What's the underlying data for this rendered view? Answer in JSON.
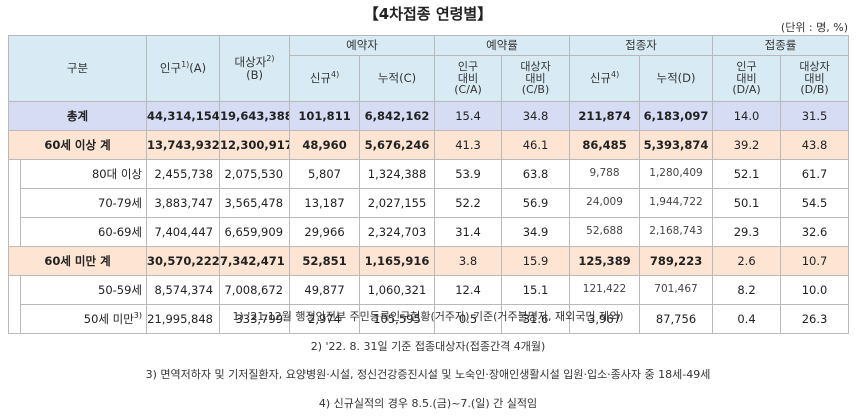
{
  "title": "【4차접종 연령별】",
  "unit": "(단위 : 명, %)",
  "header": {
    "category": "구분",
    "population": "인구",
    "population_sup": "1)",
    "population_code": "(A)",
    "target": "대상자",
    "target_sup": "2)",
    "target_code": "(B)",
    "reservation_group": "예약자",
    "reservation_rate_group": "예약률",
    "vaccinated_group": "접종자",
    "vaccination_rate_group": "접종률",
    "new": "신규",
    "new_sup": "4)",
    "cumulative_c": "누적(C)",
    "cumulative_d": "누적(D)",
    "pop_ratio_line1": "인구",
    "pop_ratio_line2": "대비",
    "target_ratio_line1": "대상자",
    "target_ratio_line2": "대비",
    "ca": "(C/A)",
    "cb": "(C/B)",
    "da": "(D/A)",
    "db": "(D/B)"
  },
  "rows": [
    {
      "label": "총계",
      "population": "44,314,154",
      "target": "19,643,388",
      "res_new": "101,811",
      "res_cum": "6,842,162",
      "res_ca": "15.4",
      "res_cb": "34.8",
      "vac_new": "211,874",
      "vac_cum": "6,183,097",
      "vac_da": "14.0",
      "vac_db": "31.5"
    },
    {
      "label": "60세 이상 계",
      "population": "13,743,932",
      "target": "12,300,917",
      "res_new": "48,960",
      "res_cum": "5,676,246",
      "res_ca": "41.3",
      "res_cb": "46.1",
      "vac_new": "86,485",
      "vac_cum": "5,393,874",
      "vac_da": "39.2",
      "vac_db": "43.8"
    },
    {
      "label": "80대 이상",
      "population": "2,455,738",
      "target": "2,075,530",
      "res_new": "5,807",
      "res_cum": "1,324,388",
      "res_ca": "53.9",
      "res_cb": "63.8",
      "vac_new": "9,788",
      "vac_cum": "1,280,409",
      "vac_da": "52.1",
      "vac_db": "61.7"
    },
    {
      "label": "70-79세",
      "population": "3,883,747",
      "target": "3,565,478",
      "res_new": "13,187",
      "res_cum": "2,027,155",
      "res_ca": "52.2",
      "res_cb": "56.9",
      "vac_new": "24,009",
      "vac_cum": "1,944,722",
      "vac_da": "50.1",
      "vac_db": "54.5"
    },
    {
      "label": "60-69세",
      "population": "7,404,447",
      "target": "6,659,909",
      "res_new": "29,966",
      "res_cum": "2,324,703",
      "res_ca": "31.4",
      "res_cb": "34.9",
      "vac_new": "52,688",
      "vac_cum": "2,168,743",
      "vac_da": "29.3",
      "vac_db": "32.6"
    },
    {
      "label": "60세 미만 계",
      "population": "30,570,222",
      "target": "7,342,471",
      "res_new": "52,851",
      "res_cum": "1,165,916",
      "res_ca": "3.8",
      "res_cb": "15.9",
      "vac_new": "125,389",
      "vac_cum": "789,223",
      "vac_da": "2.6",
      "vac_db": "10.7"
    },
    {
      "label": "50-59세",
      "population": "8,574,374",
      "target": "7,008,672",
      "res_new": "49,877",
      "res_cum": "1,060,321",
      "res_ca": "12.4",
      "res_cb": "15.1",
      "vac_new": "121,422",
      "vac_cum": "701,467",
      "vac_da": "8.2",
      "vac_db": "10.0"
    },
    {
      "label": "50세 미만",
      "label_sup": "3)",
      "population": "21,995,848",
      "target": "333,799",
      "res_new": "2,974",
      "res_cum": "105,595",
      "res_ca": "0.5",
      "res_cb": "31.6",
      "vac_new": "3,967",
      "vac_cum": "87,756",
      "vac_da": "0.4",
      "vac_db": "26.3"
    }
  ],
  "notes": [
    "1) '21.12월 행정안전부 주민등록인구현황(거주자) 기준(거주불명자, 재외국민 제외)",
    "2) '22. 8. 31일 기준 접종대상자(접종간격 4개월)",
    "3) 면역저하자 및 기저질환자, 요양병원·시설, 정신건강증진시설 및 노숙인·장애인생활시설 입원·입소·종사자 중 18세-49세",
    "4) 신규실적의 경우 8.5.(금)~7.(일) 간 실적임"
  ],
  "colors": {
    "header_bg": "#d8ebf4",
    "total_bg": "#d5dcf4",
    "group_bg": "#fde4d3",
    "border": "#b9b9b9"
  }
}
